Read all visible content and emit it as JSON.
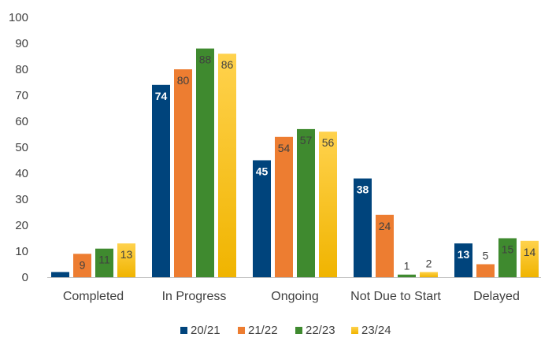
{
  "chart_data": {
    "type": "bar",
    "categories": [
      "Completed",
      "In Progress",
      "Ongoing",
      "Not Due to Start",
      "Delayed"
    ],
    "series": [
      {
        "name": "20/21",
        "values": [
          2,
          74,
          45,
          38,
          13
        ],
        "color": "#00447c",
        "label_color": "#ffffff",
        "label_bold": true
      },
      {
        "name": "21/22",
        "values": [
          9,
          80,
          54,
          24,
          5
        ],
        "color": "#ed7d31",
        "label_color": "#404040",
        "label_bold": false
      },
      {
        "name": "22/23",
        "values": [
          11,
          88,
          57,
          1,
          15
        ],
        "color": "#3f8a2f",
        "label_color": "#404040",
        "label_bold": false
      },
      {
        "name": "23/24",
        "values": [
          13,
          86,
          56,
          2,
          14
        ],
        "color": "#ffc000",
        "label_color": "#404040",
        "label_bold": false
      }
    ],
    "data_labels": [
      [
        null,
        "9",
        "11",
        "13"
      ],
      [
        "74",
        "80",
        "88",
        "86"
      ],
      [
        "45",
        "54",
        "57",
        "56"
      ],
      [
        "38",
        "24",
        "1",
        "2"
      ],
      [
        "13",
        "5",
        "15",
        "14"
      ]
    ],
    "yticks": [
      "0",
      "10",
      "20",
      "30",
      "40",
      "50",
      "60",
      "70",
      "80",
      "90",
      "100"
    ],
    "ylim": [
      0,
      100
    ],
    "grid": false,
    "legend": "bottom",
    "title": "",
    "xlabel": "",
    "ylabel": ""
  }
}
